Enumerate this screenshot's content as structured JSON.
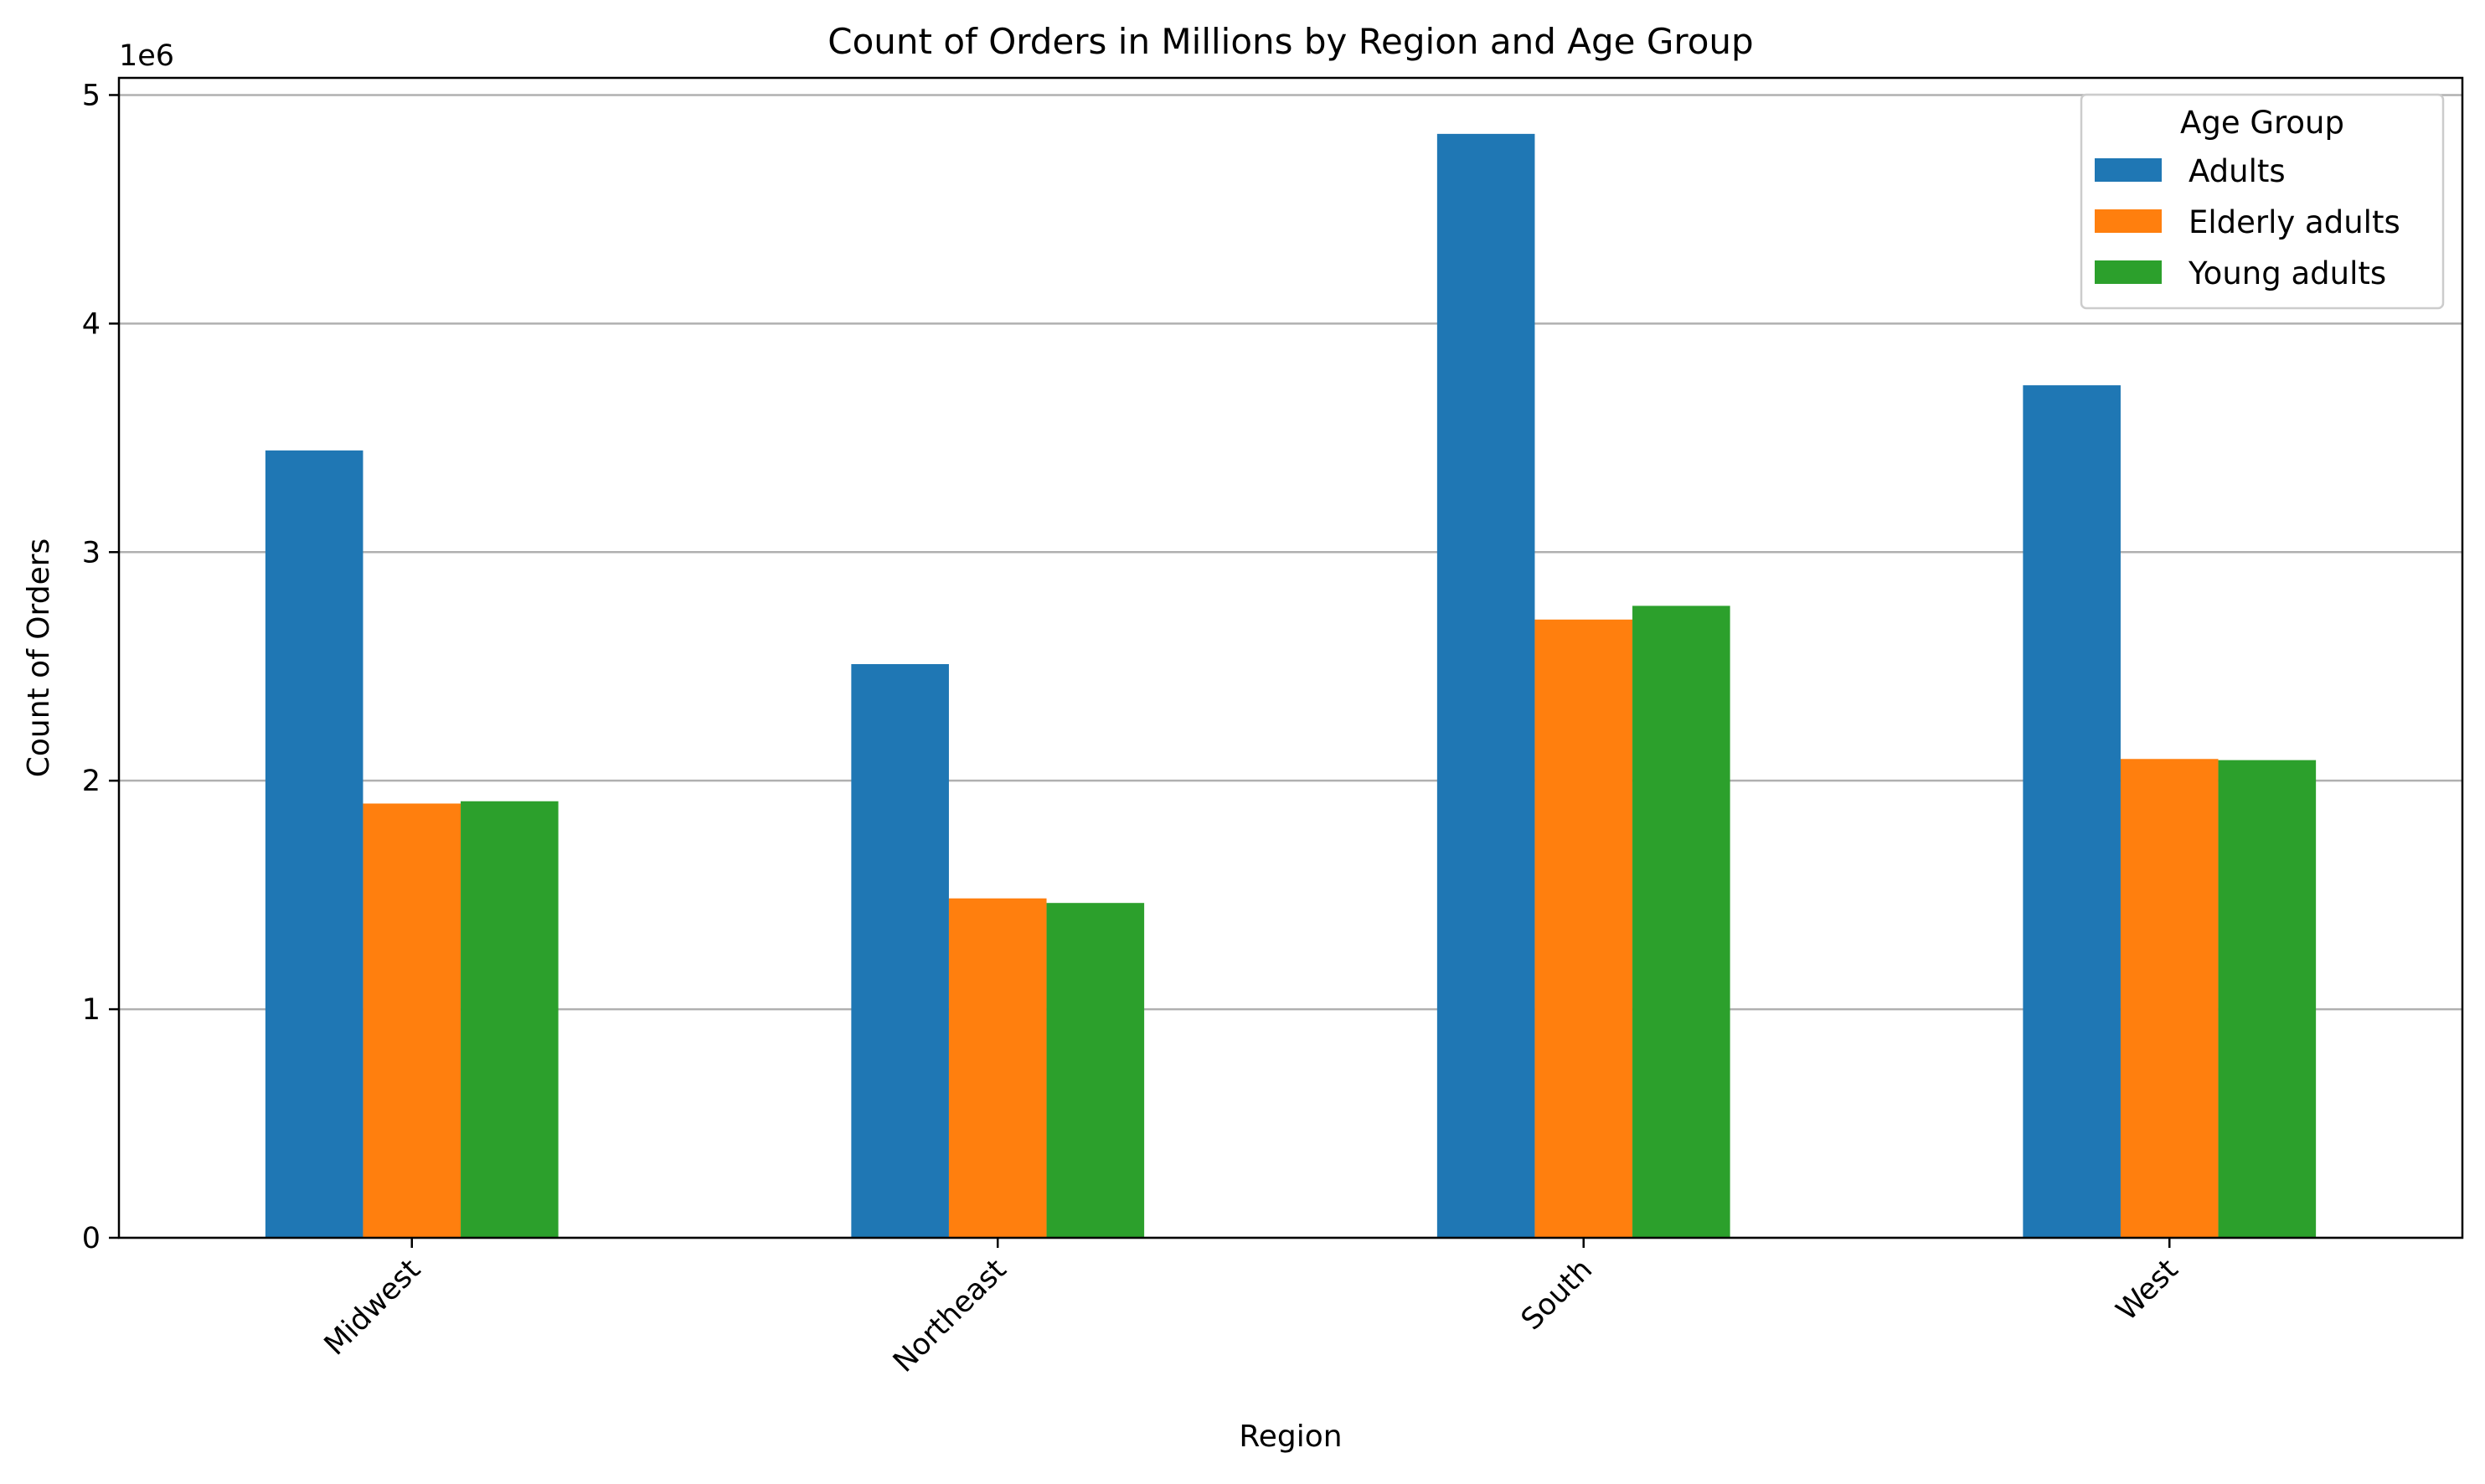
{
  "chart_data": {
    "type": "bar",
    "title": "Count of Orders in Millions by Region and Age Group",
    "xlabel": "Region",
    "ylabel": "Count of Orders",
    "y_offset_label": "1e6",
    "categories": [
      "Midwest",
      "Northeast",
      "South",
      "West"
    ],
    "yticks": [
      0,
      1000000,
      2000000,
      3000000,
      4000000,
      5000000
    ],
    "ytick_labels": [
      "0",
      "1",
      "2",
      "3",
      "4",
      "5"
    ],
    "ylim": [
      0,
      5075000
    ],
    "grid": "horizontal",
    "legend": {
      "title": "Age Group",
      "placement": "top-right"
    },
    "series": [
      {
        "name": "Adults",
        "color": "#1f77b4",
        "values": [
          3445000,
          2510000,
          4830000,
          3730000
        ]
      },
      {
        "name": "Elderly adults",
        "color": "#ff7f0e",
        "values": [
          1900000,
          1485000,
          2705000,
          2095000
        ]
      },
      {
        "name": "Young adults",
        "color": "#2ca02c",
        "values": [
          1910000,
          1465000,
          2765000,
          2090000
        ]
      }
    ]
  }
}
